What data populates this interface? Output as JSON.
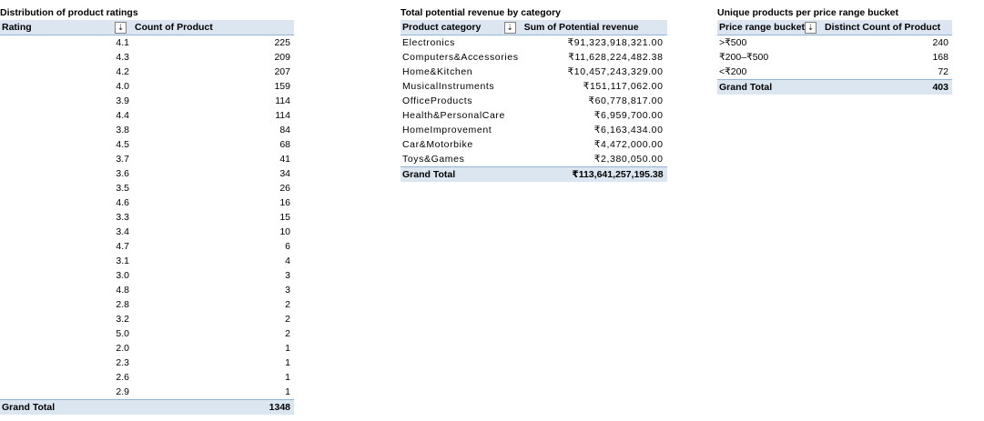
{
  "pivots": {
    "ratings": {
      "title": "Distribution of product ratings",
      "col1": "Rating",
      "col2": "Count of Product",
      "rows": [
        {
          "label": "4.1",
          "value": "225"
        },
        {
          "label": "4.3",
          "value": "209"
        },
        {
          "label": "4.2",
          "value": "207"
        },
        {
          "label": "4.0",
          "value": "159"
        },
        {
          "label": "3.9",
          "value": "114"
        },
        {
          "label": "4.4",
          "value": "114"
        },
        {
          "label": "3.8",
          "value": "84"
        },
        {
          "label": "4.5",
          "value": "68"
        },
        {
          "label": "3.7",
          "value": "41"
        },
        {
          "label": "3.6",
          "value": "34"
        },
        {
          "label": "3.5",
          "value": "26"
        },
        {
          "label": "4.6",
          "value": "16"
        },
        {
          "label": "3.3",
          "value": "15"
        },
        {
          "label": "3.4",
          "value": "10"
        },
        {
          "label": "4.7",
          "value": "6"
        },
        {
          "label": "3.1",
          "value": "4"
        },
        {
          "label": "3.0",
          "value": "3"
        },
        {
          "label": "4.8",
          "value": "3"
        },
        {
          "label": "2.8",
          "value": "2"
        },
        {
          "label": "3.2",
          "value": "2"
        },
        {
          "label": "5.0",
          "value": "2"
        },
        {
          "label": "2.0",
          "value": "1"
        },
        {
          "label": "2.3",
          "value": "1"
        },
        {
          "label": "2.6",
          "value": "1"
        },
        {
          "label": "2.9",
          "value": "1"
        }
      ],
      "total_label": "Grand Total",
      "total_value": "1348"
    },
    "revenue": {
      "title": "Total potential revenue by category",
      "col1": "Product category",
      "col2": "Sum of Potential revenue",
      "rows": [
        {
          "label": "Electronics",
          "value": "₹91,323,918,321.00"
        },
        {
          "label": "Computers&Accessories",
          "value": "₹11,628,224,482.38"
        },
        {
          "label": "Home&Kitchen",
          "value": "₹10,457,243,329.00"
        },
        {
          "label": "MusicalInstruments",
          "value": "₹151,117,062.00"
        },
        {
          "label": "OfficeProducts",
          "value": "₹60,778,817.00"
        },
        {
          "label": "Health&PersonalCare",
          "value": "₹6,959,700.00"
        },
        {
          "label": "HomeImprovement",
          "value": "₹6,163,434.00"
        },
        {
          "label": "Car&Motorbike",
          "value": "₹4,472,000.00"
        },
        {
          "label": "Toys&Games",
          "value": "₹2,380,050.00"
        }
      ],
      "total_label": "Grand Total",
      "total_value": "₹113,641,257,195.38"
    },
    "buckets": {
      "title": "Unique products per price range bucket",
      "col1": "Price range bucket",
      "col2": "Distinct Count of Product",
      "rows": [
        {
          "label": ">₹500",
          "value": "240"
        },
        {
          "label": "₹200–₹500",
          "value": "168"
        },
        {
          "label": "<₹200",
          "value": "72"
        }
      ],
      "total_label": "Grand Total",
      "total_value": "403"
    }
  },
  "icons": {
    "sort_filter": "sort-descending-filter-icon",
    "sort_glyph": "⇣"
  },
  "colors": {
    "header_fill": "#dce6f1",
    "header_border": "#95b3d7"
  }
}
